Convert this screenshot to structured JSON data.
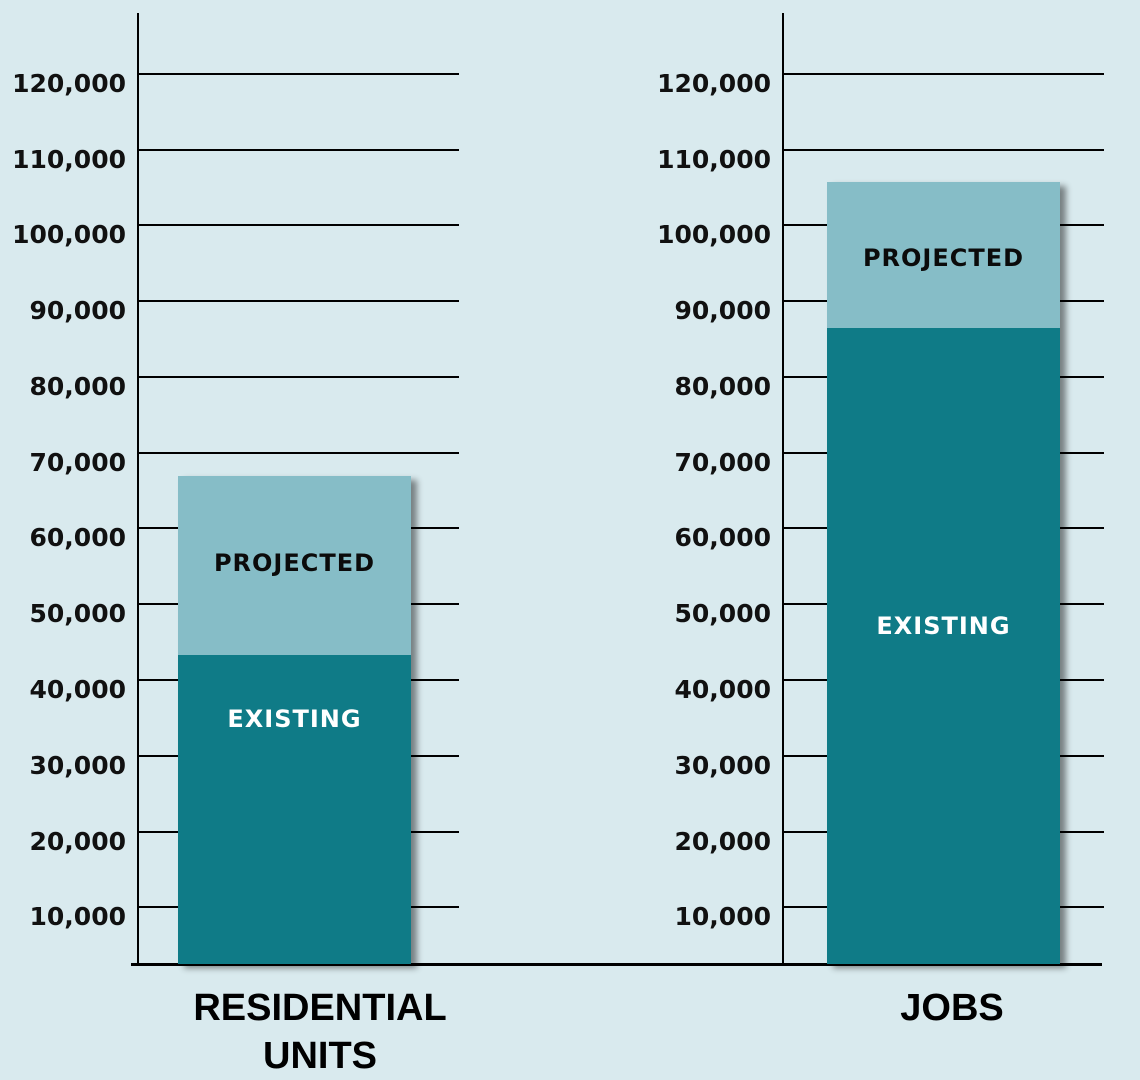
{
  "colors": {
    "background": "#d9eaee",
    "existing": "#0f7b87",
    "projected": "#86bdc7"
  },
  "labels": {
    "yticks": [
      "120,000",
      "110,000",
      "100,000",
      "90,000",
      "80,000",
      "70,000",
      "60,000",
      "50,000",
      "40,000",
      "30,000",
      "20,000",
      "10,000"
    ],
    "segments": {
      "projected": "PROJECTED",
      "existing": "EXISTING"
    },
    "categories": {
      "residential_line1": "RESIDENTIAL",
      "residential_line2": "UNITS",
      "jobs": "JOBS"
    }
  },
  "chart_data": {
    "type": "bar",
    "stacked": true,
    "title": "",
    "xlabel": "",
    "ylabel": "",
    "categories": [
      "RESIDENTIAL UNITS",
      "JOBS"
    ],
    "series": [
      {
        "name": "EXISTING",
        "values": [
          43000,
          86000
        ]
      },
      {
        "name": "PROJECTED",
        "values": [
          24000,
          20000
        ]
      }
    ],
    "totals": [
      67000,
      106000
    ],
    "ylim": [
      0,
      120000
    ],
    "yticks": [
      10000,
      20000,
      30000,
      40000,
      50000,
      60000,
      70000,
      80000,
      90000,
      100000,
      110000,
      120000
    ],
    "grid": true,
    "legend": "none (segment labels inside bars)",
    "layout": "two separate panels with their own y-axis"
  }
}
